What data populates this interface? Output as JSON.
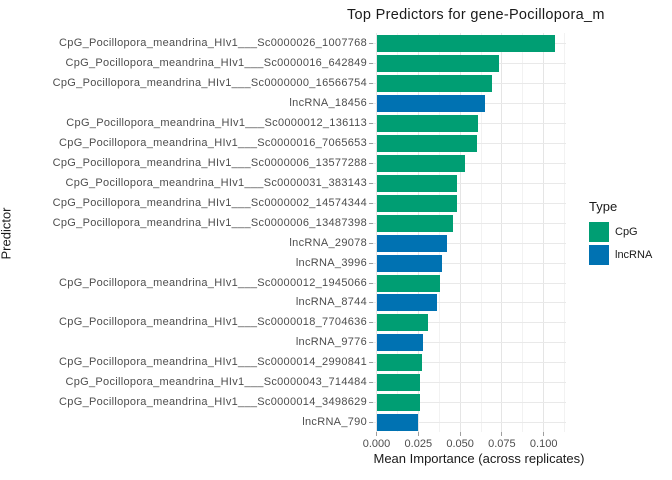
{
  "title": "Top Predictors for gene-Pocillopora_m",
  "axes": {
    "x_label": "Mean Importance (across replicates)",
    "y_label": "Predictor",
    "x_tick_labels": [
      "0.000",
      "0.025",
      "0.050",
      "0.075",
      "0.100"
    ]
  },
  "legend": {
    "title": "Type",
    "items": [
      {
        "label": "CpG",
        "color": "#009E73"
      },
      {
        "label": "lncRNA",
        "color": "#0072B2"
      }
    ]
  },
  "colors": {
    "cpg_green": "#009E73",
    "lncrna_blue": "#0072B2",
    "grid_major": "#e5e5e5",
    "grid_minor": "#f2f2f2",
    "axis_text": "#4d4d4d",
    "title_text": "#1a1a1a",
    "tick_mark": "#9e9e9e",
    "background": "#ffffff"
  },
  "chart_data": {
    "type": "bar",
    "orientation": "horizontal",
    "title": "Top Predictors for gene-Pocillopora_m",
    "xlabel": "Mean Importance (across replicates)",
    "ylabel": "Predictor",
    "xlim": [
      0,
      0.1132
    ],
    "x_major_ticks": [
      0,
      0.025,
      0.05,
      0.075,
      0.1
    ],
    "x_minor_step": 0.0125,
    "grid": true,
    "legend_position": "right",
    "legend_title": "Type",
    "series_colors": {
      "CpG": "#009E73",
      "lncRNA": "#0072B2"
    },
    "bars": [
      {
        "label": "CpG_Pocillopora_meandrina_HIv1___Sc0000026_1007768",
        "type": "CpG",
        "value": 0.107
      },
      {
        "label": "CpG_Pocillopora_meandrina_HIv1___Sc0000016_642849",
        "type": "CpG",
        "value": 0.073
      },
      {
        "label": "CpG_Pocillopora_meandrina_HIv1___Sc0000000_16566754",
        "type": "CpG",
        "value": 0.069
      },
      {
        "label": "lncRNA_18456",
        "type": "lncRNA",
        "value": 0.065
      },
      {
        "label": "CpG_Pocillopora_meandrina_HIv1___Sc0000012_136113",
        "type": "CpG",
        "value": 0.061
      },
      {
        "label": "CpG_Pocillopora_meandrina_HIv1___Sc0000016_7065653",
        "type": "CpG",
        "value": 0.06
      },
      {
        "label": "CpG_Pocillopora_meandrina_HIv1___Sc0000006_13577288",
        "type": "CpG",
        "value": 0.053
      },
      {
        "label": "CpG_Pocillopora_meandrina_HIv1___Sc0000031_383143",
        "type": "CpG",
        "value": 0.048
      },
      {
        "label": "CpG_Pocillopora_meandrina_HIv1___Sc0000002_14574344",
        "type": "CpG",
        "value": 0.048
      },
      {
        "label": "CpG_Pocillopora_meandrina_HIv1___Sc0000006_13487398",
        "type": "CpG",
        "value": 0.046
      },
      {
        "label": "lncRNA_29078",
        "type": "lncRNA",
        "value": 0.042
      },
      {
        "label": "lncRNA_3996",
        "type": "lncRNA",
        "value": 0.039
      },
      {
        "label": "CpG_Pocillopora_meandrina_HIv1___Sc0000012_1945066",
        "type": "CpG",
        "value": 0.038
      },
      {
        "label": "lncRNA_8744",
        "type": "lncRNA",
        "value": 0.036
      },
      {
        "label": "CpG_Pocillopora_meandrina_HIv1___Sc0000018_7704636",
        "type": "CpG",
        "value": 0.031
      },
      {
        "label": "lncRNA_9776",
        "type": "lncRNA",
        "value": 0.028
      },
      {
        "label": "CpG_Pocillopora_meandrina_HIv1___Sc0000014_2990841",
        "type": "CpG",
        "value": 0.027
      },
      {
        "label": "CpG_Pocillopora_meandrina_HIv1___Sc0000043_714484",
        "type": "CpG",
        "value": 0.026
      },
      {
        "label": "CpG_Pocillopora_meandrina_HIv1___Sc0000014_3498629",
        "type": "CpG",
        "value": 0.026
      },
      {
        "label": "lncRNA_790",
        "type": "lncRNA",
        "value": 0.025
      }
    ]
  }
}
